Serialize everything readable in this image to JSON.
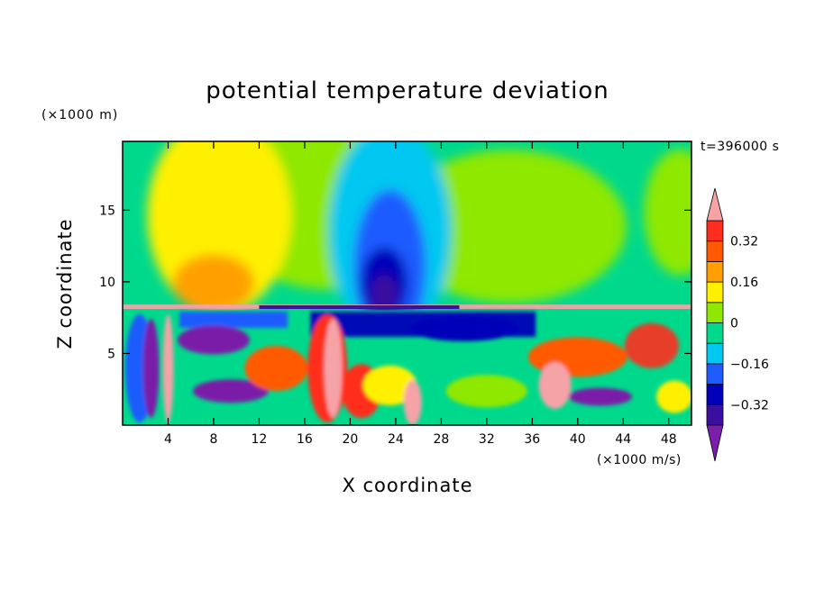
{
  "colors": {
    "palette": [
      "#7a1fa8",
      "#3b0f9e",
      "#0000b8",
      "#1f5cff",
      "#00c8f0",
      "#00d98c",
      "#8ee800",
      "#fff000",
      "#ffa000",
      "#ff5a00",
      "#ff2d1e",
      "#f6a3a8"
    ]
  },
  "chart_data": {
    "type": "heatmap",
    "title": "potential temperature deviation",
    "xlabel": "X coordinate",
    "ylabel": "Z coordinate",
    "x_unit_label": "(×1000 m/s)",
    "y_unit_label": "(×1000 m)",
    "time_label": "t=396000 s",
    "xlim": [
      0,
      50
    ],
    "ylim": [
      0,
      19.8
    ],
    "x_ticks": [
      4,
      8,
      12,
      16,
      20,
      24,
      28,
      32,
      36,
      40,
      44,
      48
    ],
    "y_ticks": [
      5,
      10,
      15
    ],
    "colorbar": {
      "levels": [
        -0.4,
        -0.32,
        -0.24,
        -0.16,
        -0.08,
        0,
        0.08,
        0.16,
        0.24,
        0.32,
        0.4
      ],
      "tick_labels": [
        "0.32",
        "0.16",
        "0",
        "−0.16",
        "−0.32"
      ],
      "tick_values": [
        0.32,
        0.16,
        0,
        -0.16,
        -0.32
      ],
      "extend": "both"
    }
  }
}
